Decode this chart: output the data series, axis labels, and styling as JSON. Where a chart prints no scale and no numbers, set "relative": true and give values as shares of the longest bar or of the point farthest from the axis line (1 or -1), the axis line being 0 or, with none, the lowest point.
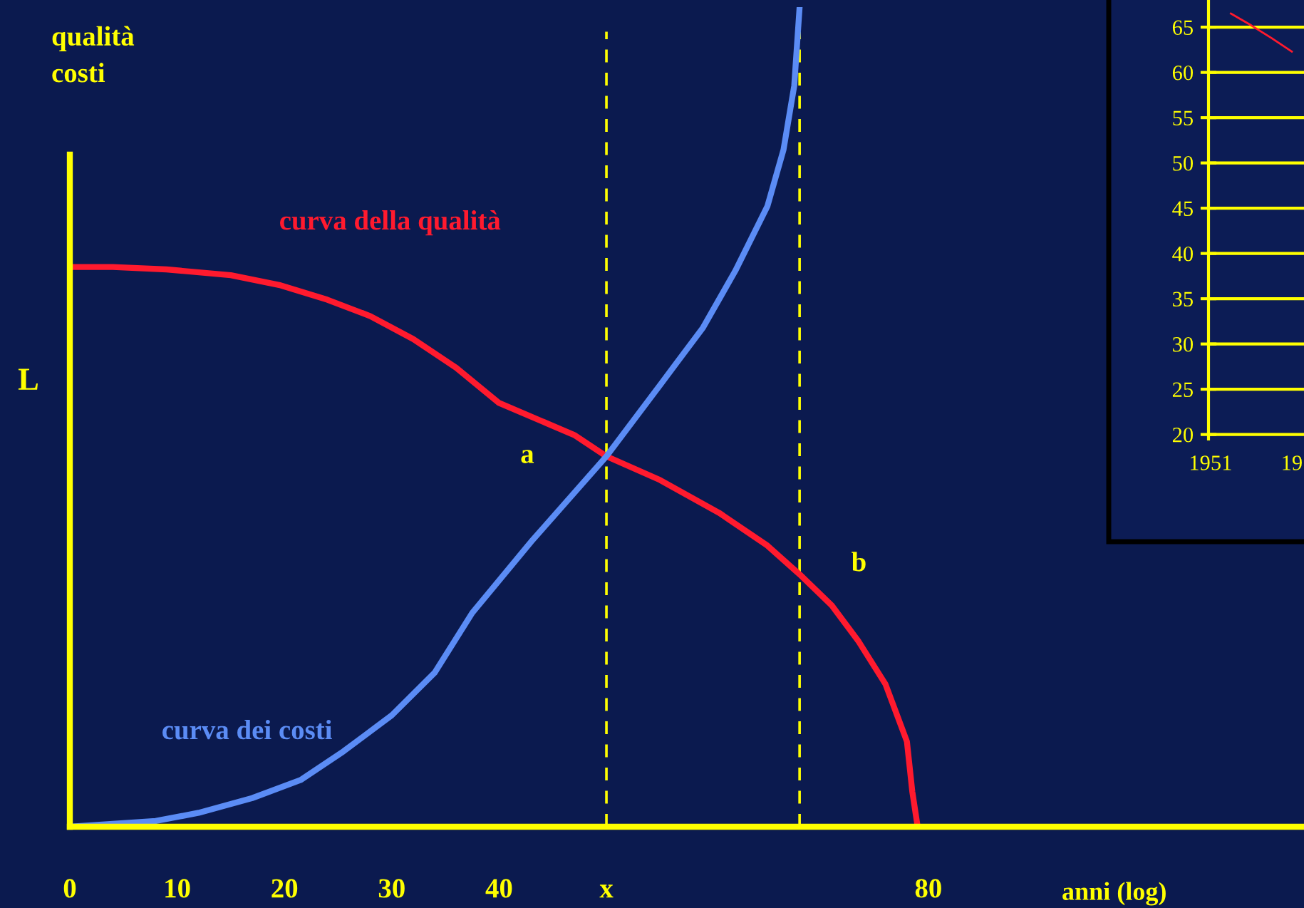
{
  "chart_data": [
    {
      "type": "line",
      "relative": true,
      "ylabel": "qualità\ncosti",
      "xlabel": "anni (log)",
      "xlim": [
        0,
        115
      ],
      "xticks": [
        0,
        10,
        20,
        30,
        40,
        {
          "value": 50,
          "label": "x"
        },
        80
      ],
      "series": [
        {
          "name": "curva della qualità",
          "color": "#ff1a2e",
          "x": [
            0,
            4,
            9,
            15,
            19.5,
            24,
            28,
            32,
            36,
            40,
            47,
            50,
            55,
            60.5,
            65,
            68,
            71,
            73.5,
            76,
            78,
            78.5,
            79
          ],
          "values": [
            0.683,
            0.683,
            0.68,
            0.673,
            0.661,
            0.643,
            0.623,
            0.595,
            0.56,
            0.517,
            0.478,
            0.452,
            0.423,
            0.383,
            0.343,
            0.308,
            0.27,
            0.226,
            0.174,
            0.104,
            0.043,
            0
          ]
        },
        {
          "name": "curva dei costi",
          "color": "#5b8cf5",
          "x": [
            0,
            8,
            12,
            17,
            21.5,
            25.5,
            30,
            34,
            37.5,
            43,
            50,
            55,
            59,
            62,
            65,
            66.5,
            67.5,
            68
          ],
          "values": [
            0,
            0.007,
            0.017,
            0.035,
            0.057,
            0.092,
            0.136,
            0.188,
            0.261,
            0.348,
            0.452,
            0.539,
            0.609,
            0.678,
            0.757,
            0.826,
            0.904,
            1
          ]
        }
      ],
      "ref_lines": [
        {
          "axis": "x",
          "value": 50,
          "color": "#ffff00",
          "line_style": "dashed"
        },
        {
          "axis": "x",
          "value": 68,
          "color": "#ffff00",
          "line_style": "dashed"
        }
      ],
      "annotations": [
        {
          "text": "a",
          "x": 50,
          "y": 0.452
        },
        {
          "text": "b",
          "x": 68,
          "y": 0.308
        },
        "L"
      ],
      "grid": false,
      "legend": false
    },
    {
      "type": "line",
      "categories": [
        "1951",
        null,
        null,
        null,
        "19"
      ],
      "ylim": [
        19.5,
        68
      ],
      "yticks": [
        20,
        25,
        30,
        35,
        40,
        45,
        50,
        55,
        60,
        65
      ],
      "grid": "y",
      "series": [
        {
          "color": "#ff1a2e",
          "values": [
            null,
            66.5,
            65.2,
            63.8,
            62.3
          ]
        }
      ]
    }
  ]
}
